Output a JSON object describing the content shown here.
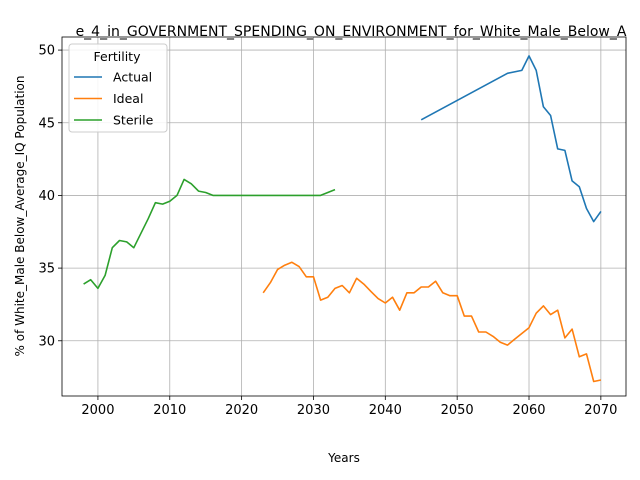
{
  "chart_data": {
    "type": "line",
    "title": "e_4_in_GOVERNMENT_SPENDING_ON_ENVIRONMENT_for_White_Male_Below_A",
    "xlabel": "Years",
    "ylabel": "% of White_Male Below_Average_IQ Population",
    "xlim": [
      1995,
      2073.5
    ],
    "ylim": [
      26.2,
      50.9
    ],
    "xticks": [
      2000,
      2010,
      2020,
      2030,
      2040,
      2050,
      2060,
      2070
    ],
    "yticks": [
      30,
      35,
      40,
      45,
      50
    ],
    "grid": true,
    "legend": {
      "title": "Fertility",
      "placement": "upper-left"
    },
    "series": [
      {
        "name": "Actual",
        "color": "#1f77b4",
        "x": [
          2045,
          2057,
          2059,
          2060,
          2061,
          2062,
          2063,
          2064,
          2065,
          2066,
          2067,
          2068,
          2069,
          2070
        ],
        "y": [
          45.2,
          48.4,
          48.6,
          49.6,
          48.6,
          46.1,
          45.5,
          43.2,
          43.1,
          41.0,
          40.6,
          39.1,
          38.2,
          38.9
        ]
      },
      {
        "name": "Ideal",
        "color": "#ff7f0e",
        "x": [
          2023,
          2024,
          2025,
          2026,
          2027,
          2028,
          2029,
          2030,
          2031,
          2032,
          2033,
          2034,
          2035,
          2036,
          2037,
          2038,
          2039,
          2040,
          2041,
          2042,
          2043,
          2044,
          2045,
          2046,
          2047,
          2048,
          2049,
          2050,
          2051,
          2052,
          2053,
          2054,
          2055,
          2056,
          2057,
          2058,
          2059,
          2060,
          2061,
          2062,
          2063,
          2064,
          2065,
          2066,
          2067,
          2068,
          2069,
          2070
        ],
        "y": [
          33.3,
          34.0,
          34.9,
          35.2,
          35.4,
          35.1,
          34.4,
          34.4,
          32.8,
          33.0,
          33.6,
          33.8,
          33.3,
          34.3,
          33.9,
          33.4,
          32.9,
          32.6,
          33.0,
          32.1,
          33.3,
          33.3,
          33.7,
          33.7,
          34.1,
          33.3,
          33.1,
          33.1,
          31.7,
          31.7,
          30.6,
          30.6,
          30.3,
          29.9,
          29.7,
          30.1,
          30.5,
          30.9,
          31.9,
          32.4,
          31.8,
          32.1,
          30.2,
          30.8,
          28.9,
          29.1,
          27.2,
          27.3
        ]
      },
      {
        "name": "Sterile",
        "color": "#2ca02c",
        "x": [
          1998,
          1999,
          2000,
          2001,
          2002,
          2003,
          2004,
          2005,
          2006,
          2007,
          2008,
          2009,
          2010,
          2011,
          2012,
          2013,
          2014,
          2015,
          2016,
          2017,
          2018,
          2019,
          2020,
          2021,
          2022,
          2023,
          2024,
          2025,
          2026,
          2027,
          2028,
          2029,
          2030,
          2031,
          2032,
          2033
        ],
        "y": [
          33.9,
          34.2,
          33.6,
          34.5,
          36.4,
          36.9,
          36.8,
          36.4,
          37.4,
          38.4,
          39.5,
          39.4,
          39.6,
          40.0,
          41.1,
          40.8,
          40.3,
          40.2,
          40.0,
          40.0,
          40.0,
          40.0,
          40.0,
          40.0,
          40.0,
          40.0,
          40.0,
          40.0,
          40.0,
          40.0,
          40.0,
          40.0,
          40.0,
          40.0,
          40.2,
          40.4
        ]
      }
    ]
  }
}
